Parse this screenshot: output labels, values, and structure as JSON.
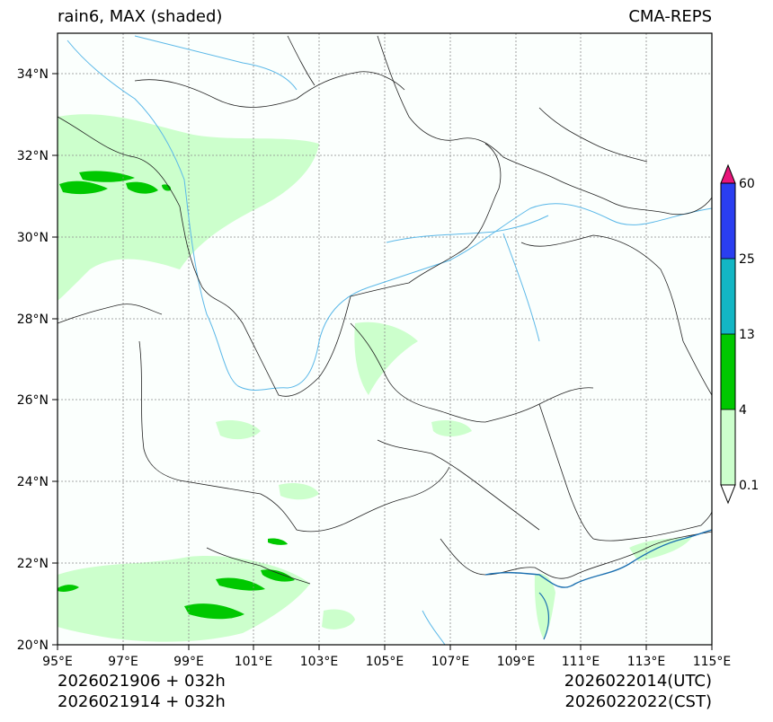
{
  "title": {
    "left": "rain6, MAX (shaded)",
    "right": "CMA-REPS"
  },
  "footer": {
    "left_line1": "2026021906  +  032h",
    "left_line2": "2026021914  +  032h",
    "right_line1": "2026022014(UTC)",
    "right_line2": "2026022022(CST)"
  },
  "chart_data": {
    "type": "map",
    "lon_ticks": [
      "95°E",
      "97°E",
      "99°E",
      "101°E",
      "103°E",
      "105°E",
      "107°E",
      "109°E",
      "111°E",
      "113°E",
      "115°E"
    ],
    "lat_ticks": [
      "20°N",
      "22°N",
      "24°N",
      "26°N",
      "28°N",
      "30°N",
      "32°N",
      "34°N"
    ],
    "lon_range": [
      95,
      115
    ],
    "lat_range": [
      20,
      35
    ],
    "colorbar": {
      "levels": [
        "0.1",
        "4",
        "13",
        "25",
        "60"
      ],
      "colors": [
        "#ccffcc",
        "#00c800",
        "#13b6c4",
        "#2a3ef0"
      ],
      "under_color": "#ffffff",
      "over_color": "#e8157a"
    }
  }
}
